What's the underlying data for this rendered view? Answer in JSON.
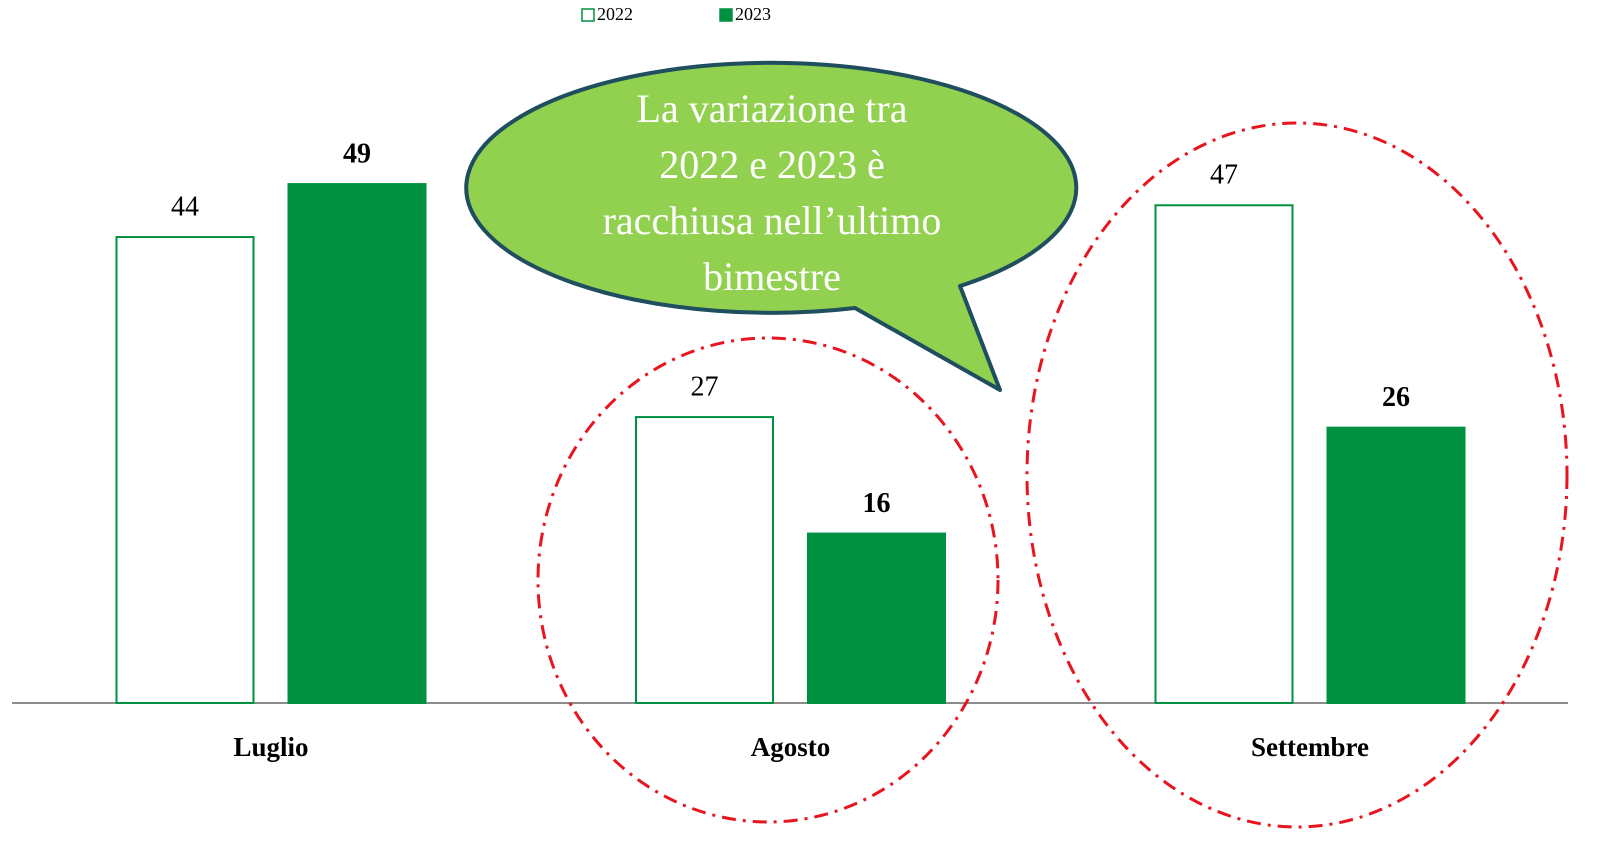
{
  "chart_data": {
    "type": "bar",
    "categories": [
      "Luglio",
      "Agosto",
      "Settembre"
    ],
    "series": [
      {
        "name": "2022",
        "color": "#009140",
        "fill": "#ffffff",
        "bold_labels": false,
        "values": [
          44,
          27,
          47
        ]
      },
      {
        "name": "2023",
        "color": "#009140",
        "fill": "#009140",
        "bold_labels": true,
        "values": [
          49,
          16,
          26
        ]
      }
    ],
    "legend": "top",
    "annotation": [
      "La variazione tra",
      "2022 e 2023 è",
      "racchiusa nell’ultimo",
      "bimestre"
    ]
  }
}
